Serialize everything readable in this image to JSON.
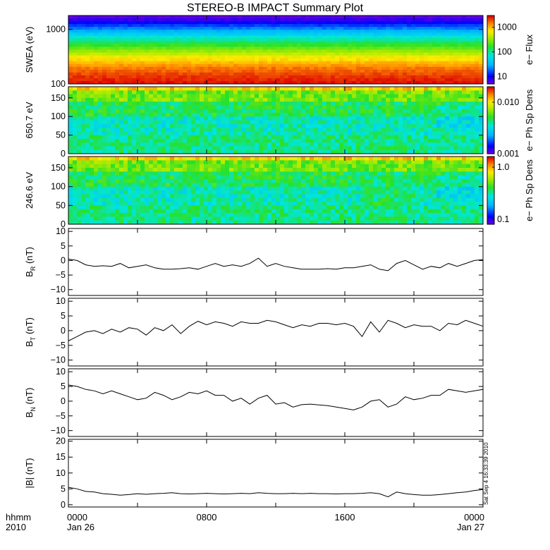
{
  "figure": {
    "title": "STEREO-B IMPACT Summary Plot",
    "footer": {
      "left_top": "hhmm",
      "left_bottom": "2010",
      "x_ticks": [
        {
          "hour": 0,
          "label": "0000",
          "sub": "Jan 26"
        },
        {
          "hour": 8,
          "label": "0800",
          "sub": ""
        },
        {
          "hour": 16,
          "label": "1600",
          "sub": ""
        },
        {
          "hour": 24,
          "label": "0000",
          "sub": "Jan 27"
        }
      ]
    },
    "timestamp": "Sat Sep  4 16:33:39 2010"
  },
  "chart_data": [
    {
      "id": "swea",
      "type": "heatmap",
      "ylabel": "SWEA (eV)",
      "yscale": "log",
      "ylim": [
        100,
        1800
      ],
      "yticks": [
        {
          "v": 100,
          "label": "100"
        },
        {
          "v": 1000,
          "label": "1000"
        }
      ],
      "colorbar": {
        "label": "e−  Flux",
        "scale": "log",
        "range": [
          5,
          3000
        ],
        "ticks": [
          {
            "v": 10,
            "label": "10"
          },
          {
            "v": 100,
            "label": "100"
          },
          {
            "v": 1000,
            "label": "1000"
          }
        ]
      },
      "x_hours": [
        0,
        24
      ],
      "profile_energy_eV": [
        100,
        140,
        200,
        300,
        450,
        700,
        1000,
        1400,
        1800
      ],
      "profile_flux": [
        2800,
        2200,
        1500,
        700,
        250,
        80,
        25,
        9,
        5
      ]
    },
    {
      "id": "pad650",
      "type": "heatmap",
      "ylabel": "650.7 eV",
      "ylim": [
        0,
        180
      ],
      "yticks": [
        {
          "v": 0,
          "label": "0"
        },
        {
          "v": 50,
          "label": "50"
        },
        {
          "v": 100,
          "label": "100"
        },
        {
          "v": 150,
          "label": "150"
        }
      ],
      "colorbar": {
        "label": "e−  Ph Sp Dens",
        "scale": "log",
        "range": [
          0.001,
          0.02
        ],
        "ticks": [
          {
            "v": 0.001,
            "label": "0.001"
          },
          {
            "v": 0.01,
            "label": "0.010"
          }
        ]
      },
      "x_hours": [
        0,
        24
      ]
    },
    {
      "id": "pad246",
      "type": "heatmap",
      "ylabel": "246.6 eV",
      "ylim": [
        0,
        180
      ],
      "yticks": [
        {
          "v": 0,
          "label": "0"
        },
        {
          "v": 50,
          "label": "50"
        },
        {
          "v": 100,
          "label": "100"
        },
        {
          "v": 150,
          "label": "150"
        }
      ],
      "colorbar": {
        "label": "e−  Ph Sp Dens",
        "scale": "log",
        "range": [
          0.08,
          1.6
        ],
        "ticks": [
          {
            "v": 0.1,
            "label": "0.1"
          },
          {
            "v": 1.0,
            "label": "1.0"
          }
        ]
      },
      "x_hours": [
        0,
        24
      ]
    },
    {
      "id": "br",
      "type": "line",
      "ylabel_main": "B",
      "ylabel_sub": "R",
      "ylabel_unit": " (nT)",
      "ylim": [
        -12,
        11
      ],
      "yticks": [
        {
          "v": -10,
          "label": "−10"
        },
        {
          "v": -5,
          "label": "−5"
        },
        {
          "v": 0,
          "label": "0"
        },
        {
          "v": 5,
          "label": "5"
        },
        {
          "v": 10,
          "label": "10"
        }
      ],
      "x": [
        0,
        0.5,
        1,
        1.5,
        2,
        2.5,
        3,
        3.5,
        4,
        4.5,
        5,
        5.5,
        6,
        6.5,
        7,
        7.5,
        8,
        8.5,
        9,
        9.5,
        10,
        10.5,
        11,
        11.5,
        12,
        12.5,
        13,
        13.5,
        14,
        14.5,
        15,
        15.5,
        16,
        16.5,
        17,
        17.5,
        18,
        18.5,
        19,
        19.5,
        20,
        20.5,
        21,
        21.5,
        22,
        22.5,
        23,
        23.5,
        24
      ],
      "y": [
        0.5,
        0,
        -1.5,
        -2,
        -1.8,
        -2,
        -1,
        -2.5,
        -2,
        -1.5,
        -2.5,
        -3,
        -3,
        -2.8,
        -2.5,
        -3,
        -2,
        -1,
        -2,
        -1.5,
        -2,
        -1,
        0.8,
        -2,
        -1,
        -2,
        -2.5,
        -3,
        -3,
        -3,
        -2.8,
        -3,
        -2.5,
        -2.5,
        -2,
        -1.5,
        -3,
        -3.5,
        -1,
        0,
        -1.5,
        -3,
        -2,
        -2.5,
        -1,
        -2,
        -1,
        0,
        0.3
      ]
    },
    {
      "id": "bt",
      "type": "line",
      "ylabel_main": "B",
      "ylabel_sub": "T",
      "ylabel_unit": " (nT)",
      "ylim": [
        -12,
        11
      ],
      "yticks": [
        {
          "v": -10,
          "label": "−10"
        },
        {
          "v": -5,
          "label": "−5"
        },
        {
          "v": 0,
          "label": "0"
        },
        {
          "v": 5,
          "label": "5"
        },
        {
          "v": 10,
          "label": "10"
        }
      ],
      "x": [
        0,
        0.5,
        1,
        1.5,
        2,
        2.5,
        3,
        3.5,
        4,
        4.5,
        5,
        5.5,
        6,
        6.5,
        7,
        7.5,
        8,
        8.5,
        9,
        9.5,
        10,
        10.5,
        11,
        11.5,
        12,
        12.5,
        13,
        13.5,
        14,
        14.5,
        15,
        15.5,
        16,
        16.5,
        17,
        17.5,
        18,
        18.5,
        19,
        19.5,
        20,
        20.5,
        21,
        21.5,
        22,
        22.5,
        23,
        23.5,
        24
      ],
      "y": [
        -3.5,
        -2,
        -0.5,
        0,
        -1,
        0.5,
        -0.5,
        1,
        0.5,
        -1.5,
        1,
        0,
        2,
        -1,
        1.5,
        3.2,
        2,
        3,
        2.5,
        1.5,
        3,
        2.5,
        2.5,
        3.5,
        3,
        2,
        1,
        2,
        1.5,
        2.5,
        2.5,
        2,
        2.5,
        1.5,
        -2,
        3,
        -0.5,
        3.5,
        2.5,
        1,
        2,
        1.5,
        1.5,
        0,
        2.5,
        2,
        3.5,
        2.5,
        1.5
      ]
    },
    {
      "id": "bn",
      "type": "line",
      "ylabel_main": "B",
      "ylabel_sub": "N",
      "ylabel_unit": " (nT)",
      "ylim": [
        -12,
        11
      ],
      "yticks": [
        {
          "v": -10,
          "label": "−10"
        },
        {
          "v": -5,
          "label": "−5"
        },
        {
          "v": 0,
          "label": "0"
        },
        {
          "v": 5,
          "label": "5"
        },
        {
          "v": 10,
          "label": "10"
        }
      ],
      "x": [
        0,
        0.5,
        1,
        1.5,
        2,
        2.5,
        3,
        3.5,
        4,
        4.5,
        5,
        5.5,
        6,
        6.5,
        7,
        7.5,
        8,
        8.5,
        9,
        9.5,
        10,
        10.5,
        11,
        11.5,
        12,
        12.5,
        13,
        13.5,
        14,
        14.5,
        15,
        15.5,
        16,
        16.5,
        17,
        17.5,
        18,
        18.5,
        19,
        19.5,
        20,
        20.5,
        21,
        21.5,
        22,
        22.5,
        23,
        23.5,
        24
      ],
      "y": [
        5.5,
        5,
        4,
        3.5,
        2.5,
        3.5,
        2.5,
        1.5,
        0.5,
        1,
        3,
        2,
        0.5,
        1.5,
        3,
        2.5,
        3.5,
        2,
        2,
        0,
        1,
        -1,
        1,
        2,
        -1,
        -0.5,
        -2,
        -1.2,
        -1,
        -1.3,
        -1.5,
        -2,
        -2.5,
        -3,
        -2,
        0,
        0.5,
        -2,
        -1,
        1.5,
        0.5,
        1,
        2,
        2,
        4,
        3.5,
        3,
        3.5,
        4
      ]
    },
    {
      "id": "bmag",
      "type": "line",
      "ylabel_main": "|B|",
      "ylabel_sub": "",
      "ylabel_unit": " (nT)",
      "ylim": [
        -0.7,
        20.6
      ],
      "yticks": [
        {
          "v": 0,
          "label": "0"
        },
        {
          "v": 5,
          "label": "5"
        },
        {
          "v": 10,
          "label": "10"
        },
        {
          "v": 15,
          "label": "15"
        },
        {
          "v": 20,
          "label": "20"
        }
      ],
      "x": [
        0,
        0.5,
        1,
        1.5,
        2,
        2.5,
        3,
        3.5,
        4,
        4.5,
        5,
        5.5,
        6,
        6.5,
        7,
        7.5,
        8,
        8.5,
        9,
        9.5,
        10,
        10.5,
        11,
        11.5,
        12,
        12.5,
        13,
        13.5,
        14,
        14.5,
        15,
        15.5,
        16,
        16.5,
        17,
        17.5,
        18,
        18.5,
        19,
        19.5,
        20,
        20.5,
        21,
        21.5,
        22,
        22.5,
        23,
        23.5,
        24
      ],
      "y": [
        5.5,
        5,
        4.2,
        4,
        3.5,
        3.3,
        3,
        3.2,
        3.5,
        3.3,
        3.5,
        3.6,
        3.8,
        3.5,
        3.4,
        3.5,
        3.6,
        3.5,
        3.4,
        3.5,
        3.6,
        3.5,
        3.8,
        3.6,
        3.5,
        3.5,
        3.6,
        3.5,
        3.6,
        3.5,
        3.5,
        3.4,
        3.5,
        3.5,
        3.6,
        3.8,
        3.5,
        2.5,
        4,
        3.5,
        3.2,
        3,
        3,
        3.2,
        3.5,
        3.8,
        4,
        4.5,
        4.8
      ]
    }
  ]
}
